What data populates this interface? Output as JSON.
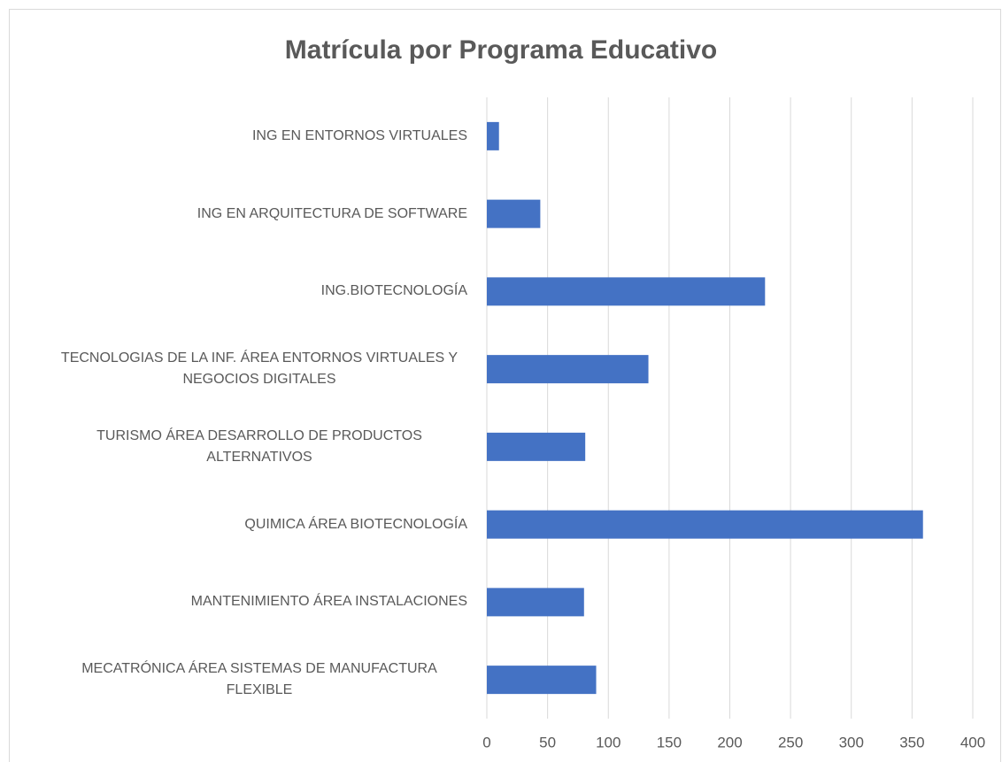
{
  "chart_data": {
    "type": "barh",
    "title": "Matrícula por Programa Educativo",
    "categories": [
      "ING EN ENTORNOS VIRTUALES",
      "ING EN ARQUITECTURA DE SOFTWARE",
      "ING.BIOTECNOLOGÍA",
      "TECNOLOGIAS DE LA INF. ÁREA ENTORNOS VIRTUALES Y NEGOCIOS DIGITALES",
      "TURISMO ÁREA DESARROLLO DE PRODUCTOS ALTERNATIVOS",
      "QUIMICA ÁREA BIOTECNOLOGÍA",
      "MANTENIMIENTO ÁREA INSTALACIONES",
      "MECATRÓNICA ÁREA SISTEMAS DE MANUFACTURA FLEXIBLE"
    ],
    "values": [
      10,
      44,
      229,
      133,
      81,
      359,
      80,
      90
    ],
    "color": "#4472c4",
    "xlim": [
      0,
      400
    ],
    "xticks": [
      0,
      50,
      100,
      150,
      200,
      250,
      300,
      350,
      400
    ],
    "grid": true
  }
}
